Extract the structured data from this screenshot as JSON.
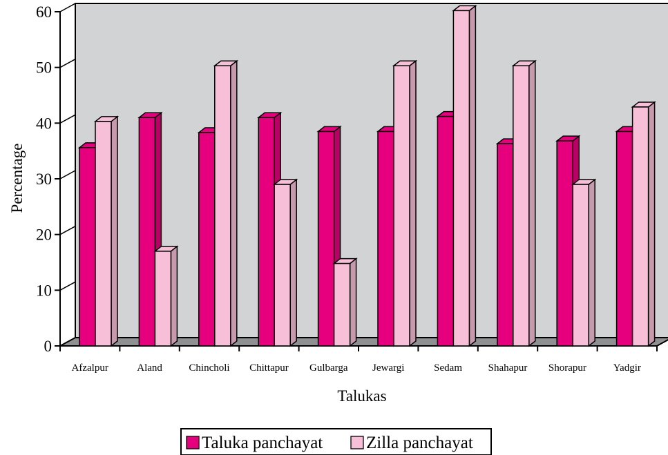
{
  "chart_data": {
    "type": "bar",
    "title": "",
    "xlabel": "Talukas",
    "ylabel": "Percentage",
    "ylim": [
      0,
      60
    ],
    "yticks": [
      0,
      10,
      20,
      30,
      40,
      50,
      60
    ],
    "grid": false,
    "legend_position": "bottom",
    "categories": [
      "Afzalpur",
      "Aland",
      "Chincholi",
      "Chittapur",
      "Gulbarga",
      "Jewargi",
      "Sedam",
      "Shahapur",
      "Shorapur",
      "Yadgir"
    ],
    "series": [
      {
        "name": "Taluka panchayat",
        "color": "#e6007e",
        "values": [
          35.6,
          41.0,
          38.3,
          41.0,
          38.5,
          38.5,
          41.2,
          36.3,
          36.8,
          38.5
        ]
      },
      {
        "name": "Zilla panchayat",
        "color": "#f7bfd8",
        "values": [
          40.3,
          17.0,
          50.3,
          29.0,
          14.8,
          50.3,
          60.2,
          50.3,
          29.0,
          42.9
        ]
      }
    ],
    "colors": {
      "wall": "#d2d3d5",
      "floor": "#8f9092",
      "edge": "#000000"
    }
  }
}
